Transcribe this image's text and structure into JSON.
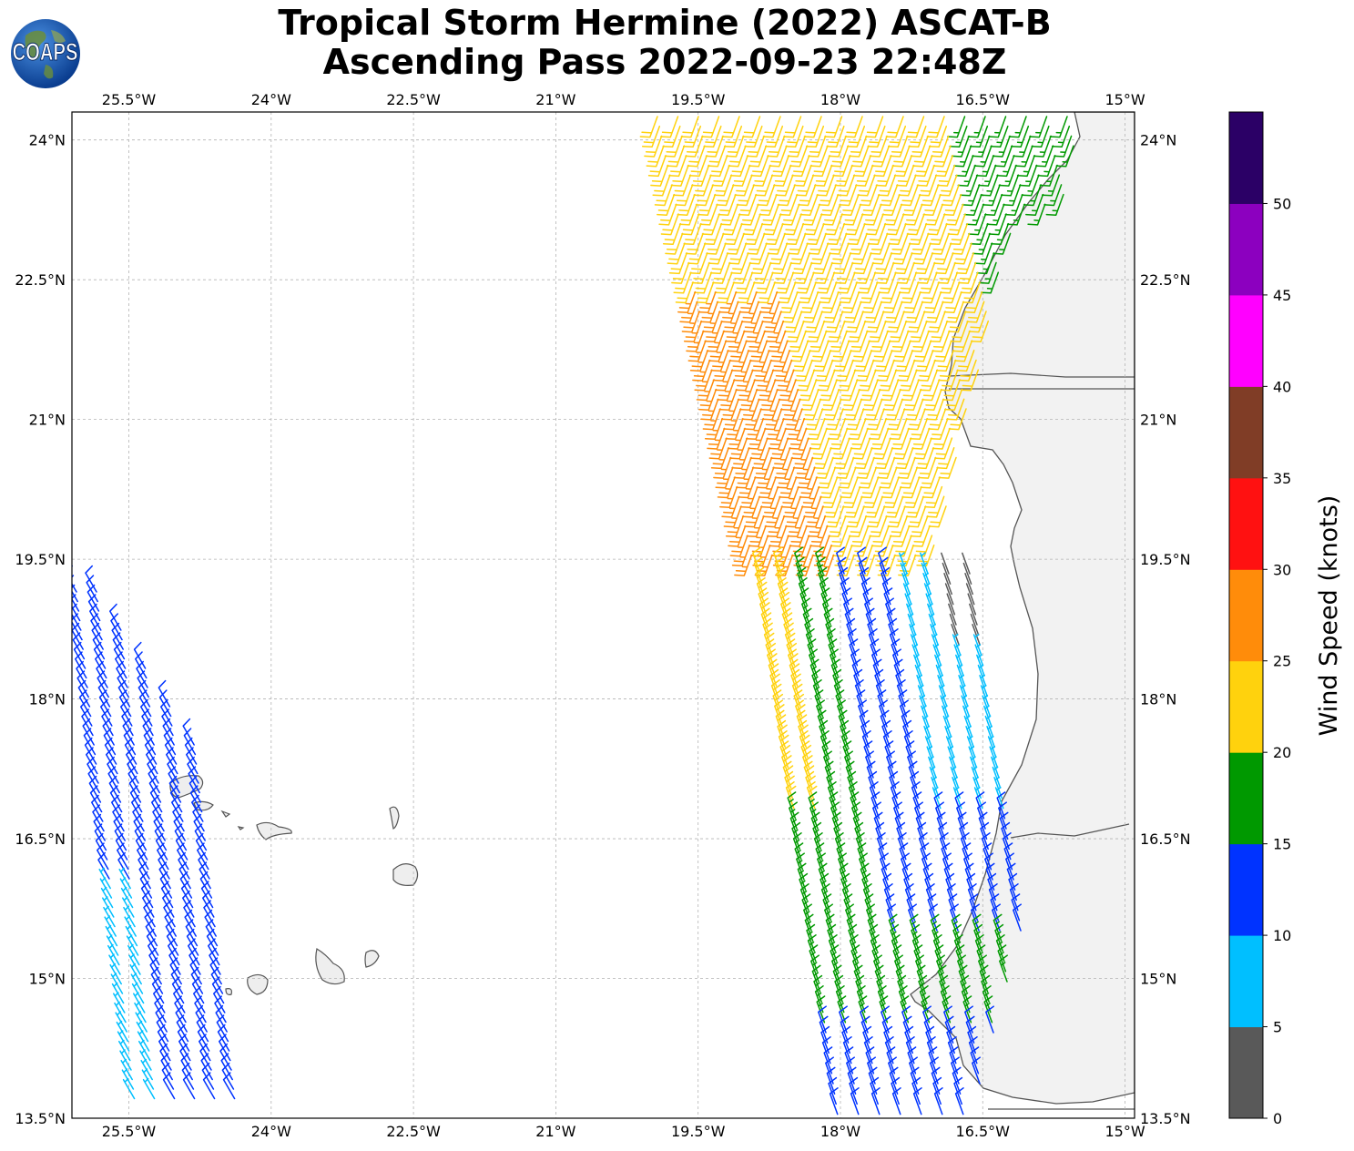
{
  "title": {
    "line1": "Tropical Storm Hermine (2022) ASCAT-B",
    "line2": "Ascending Pass 2022-09-23 22:48Z"
  },
  "logo": {
    "text": "COAPS",
    "icon": "globe-logo-icon"
  },
  "map": {
    "extent": {
      "lon_min": -26.1,
      "lon_max": -14.9,
      "lat_min": 13.5,
      "lat_max": 24.3
    },
    "lon_ticks": [
      {
        "value": -25.5,
        "label": "25.5°W"
      },
      {
        "value": -24.0,
        "label": "24°W"
      },
      {
        "value": -22.5,
        "label": "22.5°W"
      },
      {
        "value": -21.0,
        "label": "21°W"
      },
      {
        "value": -19.5,
        "label": "19.5°W"
      },
      {
        "value": -18.0,
        "label": "18°W"
      },
      {
        "value": -16.5,
        "label": "16.5°W"
      },
      {
        "value": -15.0,
        "label": "15°W"
      }
    ],
    "lat_ticks": [
      {
        "value": 24.0,
        "label": "24°N"
      },
      {
        "value": 22.5,
        "label": "22.5°N"
      },
      {
        "value": 21.0,
        "label": "21°N"
      },
      {
        "value": 19.5,
        "label": "19.5°N"
      },
      {
        "value": 18.0,
        "label": "18°N"
      },
      {
        "value": 16.5,
        "label": "16.5°N"
      },
      {
        "value": 15.0,
        "label": "15°N"
      },
      {
        "value": 13.5,
        "label": "13.5°N"
      }
    ]
  },
  "colorbar": {
    "label": "Wind Speed (knots)",
    "ticks": [
      "0",
      "5",
      "10",
      "15",
      "20",
      "25",
      "30",
      "35",
      "40",
      "45",
      "50"
    ],
    "bins": [
      {
        "min": 0,
        "max": 5,
        "color": "#595959"
      },
      {
        "min": 5,
        "max": 10,
        "color": "#00bfff"
      },
      {
        "min": 10,
        "max": 15,
        "color": "#0033ff"
      },
      {
        "min": 15,
        "max": 20,
        "color": "#009900"
      },
      {
        "min": 20,
        "max": 25,
        "color": "#ffd20d"
      },
      {
        "min": 25,
        "max": 30,
        "color": "#ff8c0a"
      },
      {
        "min": 30,
        "max": 35,
        "color": "#ff1111"
      },
      {
        "min": 35,
        "max": 40,
        "color": "#803d26"
      },
      {
        "min": 40,
        "max": 45,
        "color": "#ff00ff"
      },
      {
        "min": 45,
        "max": 50,
        "color": "#8c00bf"
      },
      {
        "min": 50,
        "max": 55,
        "color": "#2b0066"
      }
    ]
  },
  "colors": {
    "land": "#f2f2f2",
    "coast": "#555555",
    "grid": "#b3b3b3"
  }
}
